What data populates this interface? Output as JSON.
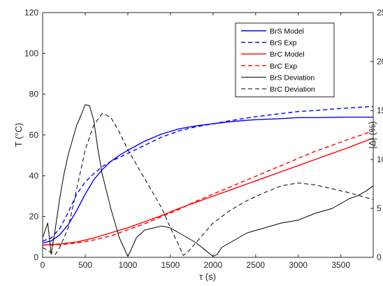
{
  "chart_data": {
    "type": "line",
    "title": "",
    "xlabel": "τ (s)",
    "ylabel_left": "T (°C)",
    "ylabel_right": "|Δ| (%)",
    "xlim": [
      0,
      3880
    ],
    "ylim_left": [
      0,
      120
    ],
    "ylim_right": [
      0,
      25
    ],
    "x_ticks": [
      "0",
      "500",
      "1000",
      "1500",
      "2000",
      "2500",
      "3000",
      "3500"
    ],
    "y_left_ticks": [
      "0",
      "20",
      "40",
      "60",
      "80",
      "100",
      "120"
    ],
    "y_right_ticks": [
      "0",
      "5",
      "10",
      "15",
      "20",
      "25"
    ],
    "grid": false,
    "legend_position": "top-right",
    "series": [
      {
        "name": "BrS Model",
        "axis": "left",
        "color": "#0000ff",
        "dash": "solid",
        "x": [
          0,
          100,
          200,
          300,
          400,
          500,
          600,
          700,
          800,
          900,
          1000,
          1200,
          1400,
          1600,
          1800,
          2000,
          2200,
          2500,
          2800,
          3000,
          3200,
          3500,
          3880
        ],
        "y": [
          7,
          8,
          11,
          16,
          23,
          31,
          38,
          43,
          47,
          50,
          52.5,
          57,
          60.5,
          63,
          64.5,
          65.5,
          66.5,
          67.5,
          68,
          68.5,
          68.5,
          68.7,
          68.7
        ]
      },
      {
        "name": "BrS Exp",
        "axis": "left",
        "color": "#0000ff",
        "dash": "dashed",
        "x": [
          0,
          100,
          200,
          300,
          400,
          500,
          600,
          700,
          800,
          900,
          1000,
          1200,
          1400,
          1600,
          1800,
          2000,
          2200,
          2500,
          2800,
          3000,
          3200,
          3500,
          3880
        ],
        "y": [
          8,
          9.5,
          14,
          22,
          31,
          37,
          41,
          44.5,
          47,
          49,
          51,
          55,
          59,
          62,
          64,
          65.5,
          67,
          69,
          70.5,
          71.5,
          72,
          73,
          74
        ]
      },
      {
        "name": "BrC Model",
        "axis": "left",
        "color": "#ff0000",
        "dash": "solid",
        "x": [
          0,
          200,
          400,
          600,
          800,
          1000,
          1200,
          1400,
          1600,
          1800,
          2000,
          2200,
          2400,
          2600,
          2800,
          3000,
          3200,
          3400,
          3600,
          3880
        ],
        "y": [
          6,
          6.5,
          7.5,
          9.5,
          12,
          14.5,
          17.5,
          20.5,
          24,
          27,
          30,
          33,
          36,
          39,
          42,
          45,
          48,
          51,
          54,
          58.5
        ]
      },
      {
        "name": "BrC Exp",
        "axis": "left",
        "color": "#ff0000",
        "dash": "dashed",
        "x": [
          0,
          200,
          400,
          600,
          800,
          1000,
          1200,
          1400,
          1600,
          1800,
          2000,
          2200,
          2400,
          2600,
          2800,
          3000,
          3200,
          3400,
          3600,
          3880
        ],
        "y": [
          6,
          6.2,
          7,
          8.5,
          10.5,
          13.5,
          16.5,
          20,
          23.5,
          27.5,
          31,
          34.5,
          38,
          41.5,
          45,
          48.5,
          52,
          55,
          58,
          62
        ]
      },
      {
        "name": "BrS Deviation",
        "axis": "right",
        "color": "#000000",
        "dash": "solid",
        "x": [
          0,
          60,
          100,
          150,
          200,
          250,
          300,
          350,
          400,
          450,
          500,
          550,
          600,
          650,
          700,
          800,
          900,
          1000,
          1050,
          1100,
          1200,
          1300,
          1400,
          1500,
          1600,
          1700,
          1800,
          1900,
          2000,
          2050,
          2100,
          2200,
          2400,
          2600,
          2800,
          3000,
          3200,
          3400,
          3600,
          3700,
          3800,
          3880
        ],
        "y": [
          2,
          3.5,
          0.3,
          3,
          6,
          8.5,
          10.5,
          12,
          13.5,
          14.5,
          15.6,
          15.5,
          14,
          11,
          8.5,
          5,
          2,
          0.1,
          1,
          2,
          2.8,
          3,
          3.2,
          3,
          2.5,
          2,
          1.5,
          0.8,
          0.1,
          0.3,
          1,
          1.5,
          2.5,
          3,
          3.5,
          3.8,
          4.5,
          5,
          6,
          6.3,
          6.8,
          7.3
        ]
      },
      {
        "name": "BrC Deviation",
        "axis": "right",
        "color": "#000000",
        "dash": "dashed",
        "x": [
          0,
          100,
          150,
          200,
          300,
          400,
          500,
          600,
          700,
          800,
          900,
          1000,
          1100,
          1200,
          1300,
          1400,
          1500,
          1600,
          1650,
          1700,
          1800,
          1900,
          2000,
          2200,
          2400,
          2600,
          2800,
          3000,
          3200,
          3400,
          3600,
          3880
        ],
        "y": [
          1,
          0.5,
          0.3,
          1,
          3,
          7,
          11,
          13.5,
          14.7,
          14.3,
          12.8,
          11,
          9.5,
          8,
          6.5,
          5,
          3,
          1.2,
          0.2,
          0.5,
          1.5,
          2.5,
          3.5,
          4.8,
          5.8,
          6.6,
          7.3,
          7.6,
          7.4,
          7,
          6.6,
          5.9
        ]
      }
    ]
  }
}
